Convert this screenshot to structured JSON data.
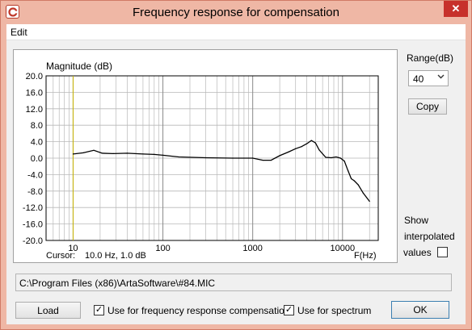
{
  "window": {
    "title": "Frequency response for compensation",
    "close_glyph": "✕"
  },
  "menu": {
    "edit": "Edit"
  },
  "chart_data": {
    "type": "line",
    "ylabel": "Magnitude (dB)",
    "xlabel": "F(Hz)",
    "xscale": "log",
    "xlim": [
      5,
      25000
    ],
    "ylim": [
      -20,
      20
    ],
    "yticks": [
      "20.0",
      "16.0",
      "12.0",
      "8.0",
      "4.0",
      "0.0",
      "-4.0",
      "-8.0",
      "-12.0",
      "-16.0",
      "-20.0"
    ],
    "xticks": [
      "10",
      "100",
      "1000",
      "10000"
    ],
    "cursor": {
      "label": "Cursor:",
      "value": "10.0 Hz, 1.0 dB",
      "x": 10,
      "y": 1.0
    },
    "grid": true,
    "series": [
      {
        "color": "#000000",
        "x": [
          10,
          13,
          17,
          21,
          28,
          40,
          60,
          80,
          100,
          150,
          300,
          600,
          1000,
          1300,
          1600,
          2000,
          2500,
          3000,
          3500,
          4000,
          4500,
          5000,
          5500,
          6500,
          7500,
          8500,
          9500,
          10500,
          11500,
          12500,
          13500,
          15000,
          17000,
          20000
        ],
        "y": [
          1.0,
          1.3,
          1.9,
          1.2,
          1.1,
          1.2,
          1.0,
          0.9,
          0.7,
          0.3,
          0.1,
          0.0,
          0.0,
          -0.5,
          -0.5,
          0.6,
          1.5,
          2.3,
          2.8,
          3.5,
          4.3,
          3.7,
          2.0,
          0.2,
          0.1,
          0.3,
          0.0,
          -0.7,
          -3.0,
          -5.0,
          -5.5,
          -6.5,
          -8.5,
          -10.5
        ]
      }
    ]
  },
  "side": {
    "range_label": "Range(dB)",
    "range_value": "40",
    "copy": "Copy",
    "show": "Show",
    "interpolated": "interpolated",
    "values": "values"
  },
  "path": "C:\\Program Files (x86)\\ArtaSoftware\\#84.MIC",
  "bottom": {
    "load": "Load",
    "use_comp": "Use for frequency response compensation",
    "use_spec": "Use for spectrum",
    "ok": "OK",
    "check_glyph": "✓"
  },
  "colors": {
    "cursor_line": "#c8b400",
    "grid": "#b8b8b8",
    "trace": "#000000"
  }
}
